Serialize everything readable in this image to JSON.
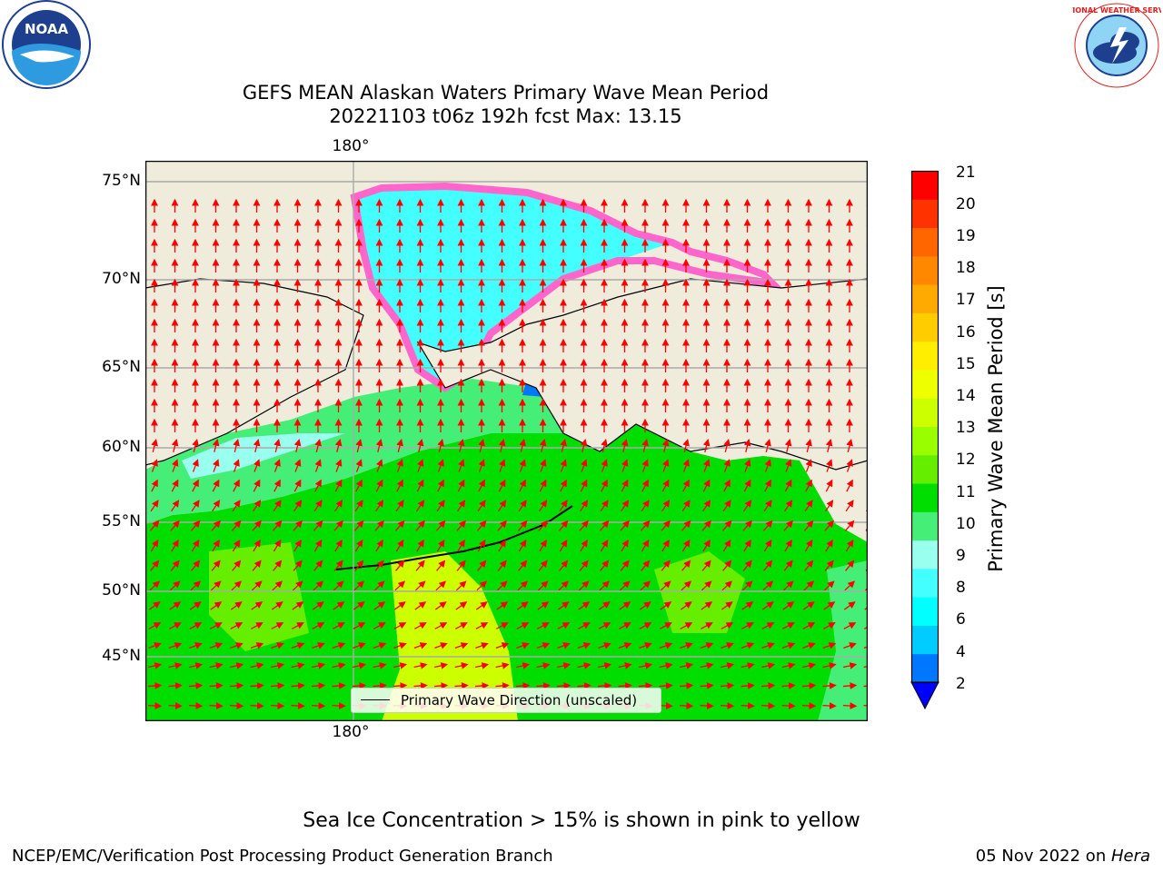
{
  "title": {
    "line1": "GEFS MEAN Alaskan Waters Primary Wave Mean Period",
    "line2": "20221103 t06z 192h fcst   Max: 13.15"
  },
  "logos": {
    "noaa_text": "NOAA",
    "nws_text": "NATIONAL WEATHER SERVICE"
  },
  "map": {
    "lat_labels": [
      "75°N",
      "70°N",
      "65°N",
      "60°N",
      "55°N",
      "50°N",
      "45°N"
    ],
    "lon_label_top": "180°",
    "lon_label_bottom": "180°",
    "legend_label": "Primary Wave Direction (unscaled)",
    "colors": {
      "land": "#efecdc",
      "ocean_main": "#00e000",
      "arrow": "#ff0000",
      "ice": "#ff66cc"
    }
  },
  "colorbar": {
    "label": "Primary Wave Mean Period [s]",
    "ticks": [
      "21",
      "20",
      "19",
      "18",
      "17",
      "16",
      "15",
      "14",
      "13",
      "12",
      "11",
      "10",
      "9",
      "8",
      "6",
      "4",
      "2"
    ],
    "colors": [
      "#ff0000",
      "#ff3300",
      "#ff6600",
      "#ff8800",
      "#ffaa00",
      "#ffcc00",
      "#ffee00",
      "#eeff00",
      "#ccff00",
      "#99ff00",
      "#66ee00",
      "#00dd00",
      "#44ee77",
      "#99ffee",
      "#44ffff",
      "#00ffff",
      "#00ccff",
      "#0077ff"
    ],
    "under_color": "#0000ff"
  },
  "note": "Sea Ice Concentration > 15% is shown in pink to yellow",
  "footer": {
    "left": "NCEP/EMC/Verification Post Processing Product Generation Branch",
    "right_date": "05 Nov 2022 on ",
    "right_machine": "Hera"
  }
}
